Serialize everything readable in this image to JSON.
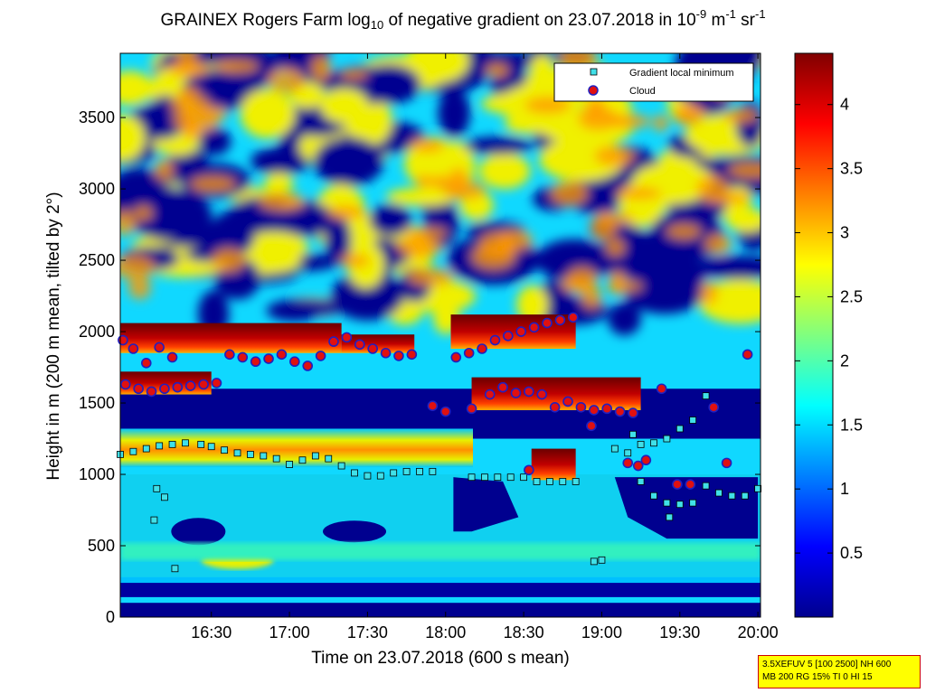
{
  "chart_data": {
    "type": "heatmap",
    "title": {
      "prefix": "GRAINEX Rogers Farm log",
      "sub": "10",
      "middle": " of negative gradient on 23.07.2018 in 10",
      "sup1": "-9",
      "mid2": " m",
      "sup2": "-1",
      "mid3": " sr",
      "sup3": "-1"
    },
    "xlabel": "Time on 23.07.2018 (600 s mean)",
    "ylabel": "Height in m (200 m mean, tilted by 2°)",
    "x_ticks": [
      "16:30",
      "17:00",
      "17:30",
      "18:00",
      "18:30",
      "19:00",
      "19:30",
      "20:00"
    ],
    "x_tick_minutes": [
      990,
      1020,
      1050,
      1080,
      1110,
      1140,
      1170,
      1200
    ],
    "xlim_minutes": [
      955,
      1201
    ],
    "y_ticks": [
      0,
      500,
      1000,
      1500,
      2000,
      2500,
      3000,
      3500
    ],
    "ylim": [
      0,
      3950
    ],
    "colorbar": {
      "ticks": [
        0.5,
        1,
        1.5,
        2,
        2.5,
        3,
        3.5,
        4
      ],
      "range": [
        0,
        4.4
      ],
      "colormap": "jet"
    },
    "legend": {
      "position": "top-right",
      "entries": [
        {
          "label": "Gradient local minimum",
          "marker": "square",
          "color": "#40e0e8"
        },
        {
          "label": "Cloud",
          "marker": "circle",
          "color": "#e01010",
          "edge": "#2020c0"
        }
      ]
    },
    "gradient_local_minimum": [
      {
        "t": 955,
        "h": 1140
      },
      {
        "t": 960,
        "h": 1160
      },
      {
        "t": 965,
        "h": 1180
      },
      {
        "t": 970,
        "h": 1200
      },
      {
        "t": 975,
        "h": 1210
      },
      {
        "t": 980,
        "h": 1220
      },
      {
        "t": 986,
        "h": 1210
      },
      {
        "t": 990,
        "h": 1195
      },
      {
        "t": 995,
        "h": 1170
      },
      {
        "t": 1000,
        "h": 1150
      },
      {
        "t": 1005,
        "h": 1140
      },
      {
        "t": 1010,
        "h": 1130
      },
      {
        "t": 1015,
        "h": 1110
      },
      {
        "t": 1020,
        "h": 1070
      },
      {
        "t": 1025,
        "h": 1100
      },
      {
        "t": 1030,
        "h": 1130
      },
      {
        "t": 1035,
        "h": 1110
      },
      {
        "t": 1040,
        "h": 1060
      },
      {
        "t": 1045,
        "h": 1010
      },
      {
        "t": 1050,
        "h": 990
      },
      {
        "t": 1055,
        "h": 990
      },
      {
        "t": 1060,
        "h": 1010
      },
      {
        "t": 1065,
        "h": 1020
      },
      {
        "t": 1070,
        "h": 1020
      },
      {
        "t": 1075,
        "h": 1020
      },
      {
        "t": 1090,
        "h": 980
      },
      {
        "t": 1095,
        "h": 980
      },
      {
        "t": 1100,
        "h": 980
      },
      {
        "t": 1105,
        "h": 980
      },
      {
        "t": 1110,
        "h": 980
      },
      {
        "t": 1115,
        "h": 950
      },
      {
        "t": 1120,
        "h": 950
      },
      {
        "t": 1125,
        "h": 950
      },
      {
        "t": 1130,
        "h": 950
      },
      {
        "t": 1150,
        "h": 1150
      },
      {
        "t": 1155,
        "h": 1210
      },
      {
        "t": 1160,
        "h": 1220
      },
      {
        "t": 1165,
        "h": 1250
      },
      {
        "t": 1170,
        "h": 1320
      },
      {
        "t": 1175,
        "h": 1380
      },
      {
        "t": 1180,
        "h": 1550
      },
      {
        "t": 1155,
        "h": 950
      },
      {
        "t": 1160,
        "h": 850
      },
      {
        "t": 1165,
        "h": 800
      },
      {
        "t": 1170,
        "h": 790
      },
      {
        "t": 1175,
        "h": 800
      },
      {
        "t": 1180,
        "h": 920
      },
      {
        "t": 1185,
        "h": 870
      },
      {
        "t": 1190,
        "h": 850
      },
      {
        "t": 1195,
        "h": 850
      },
      {
        "t": 1200,
        "h": 900
      },
      {
        "t": 1166,
        "h": 700
      },
      {
        "t": 969,
        "h": 900
      },
      {
        "t": 972,
        "h": 840
      },
      {
        "t": 968,
        "h": 680
      },
      {
        "t": 976,
        "h": 340
      },
      {
        "t": 1137,
        "h": 390
      },
      {
        "t": 1140,
        "h": 400
      },
      {
        "t": 1152,
        "h": 1280
      },
      {
        "t": 1145,
        "h": 1180
      }
    ],
    "cloud": [
      {
        "t": 956,
        "h": 1940
      },
      {
        "t": 960,
        "h": 1880
      },
      {
        "t": 965,
        "h": 1780
      },
      {
        "t": 970,
        "h": 1890
      },
      {
        "t": 975,
        "h": 1820
      },
      {
        "t": 957,
        "h": 1630
      },
      {
        "t": 962,
        "h": 1600
      },
      {
        "t": 967,
        "h": 1580
      },
      {
        "t": 972,
        "h": 1600
      },
      {
        "t": 977,
        "h": 1610
      },
      {
        "t": 982,
        "h": 1620
      },
      {
        "t": 987,
        "h": 1630
      },
      {
        "t": 992,
        "h": 1640
      },
      {
        "t": 997,
        "h": 1840
      },
      {
        "t": 1002,
        "h": 1820
      },
      {
        "t": 1007,
        "h": 1790
      },
      {
        "t": 1012,
        "h": 1810
      },
      {
        "t": 1017,
        "h": 1840
      },
      {
        "t": 1022,
        "h": 1790
      },
      {
        "t": 1027,
        "h": 1760
      },
      {
        "t": 1032,
        "h": 1830
      },
      {
        "t": 1037,
        "h": 1930
      },
      {
        "t": 1042,
        "h": 1960
      },
      {
        "t": 1047,
        "h": 1910
      },
      {
        "t": 1052,
        "h": 1880
      },
      {
        "t": 1057,
        "h": 1850
      },
      {
        "t": 1062,
        "h": 1830
      },
      {
        "t": 1067,
        "h": 1840
      },
      {
        "t": 1075,
        "h": 1480
      },
      {
        "t": 1080,
        "h": 1440
      },
      {
        "t": 1084,
        "h": 1820
      },
      {
        "t": 1089,
        "h": 1850
      },
      {
        "t": 1094,
        "h": 1880
      },
      {
        "t": 1099,
        "h": 1940
      },
      {
        "t": 1104,
        "h": 1970
      },
      {
        "t": 1109,
        "h": 2000
      },
      {
        "t": 1114,
        "h": 2030
      },
      {
        "t": 1119,
        "h": 2060
      },
      {
        "t": 1124,
        "h": 2080
      },
      {
        "t": 1129,
        "h": 2100
      },
      {
        "t": 1090,
        "h": 1460
      },
      {
        "t": 1097,
        "h": 1560
      },
      {
        "t": 1102,
        "h": 1610
      },
      {
        "t": 1107,
        "h": 1570
      },
      {
        "t": 1112,
        "h": 1580
      },
      {
        "t": 1117,
        "h": 1560
      },
      {
        "t": 1122,
        "h": 1470
      },
      {
        "t": 1127,
        "h": 1510
      },
      {
        "t": 1132,
        "h": 1470
      },
      {
        "t": 1137,
        "h": 1450
      },
      {
        "t": 1142,
        "h": 1460
      },
      {
        "t": 1147,
        "h": 1440
      },
      {
        "t": 1152,
        "h": 1430
      },
      {
        "t": 1136,
        "h": 1340
      },
      {
        "t": 1150,
        "h": 1080
      },
      {
        "t": 1154,
        "h": 1060
      },
      {
        "t": 1157,
        "h": 1100
      },
      {
        "t": 1163,
        "h": 1600
      },
      {
        "t": 1169,
        "h": 930
      },
      {
        "t": 1174,
        "h": 930
      },
      {
        "t": 1183,
        "h": 1470
      },
      {
        "t": 1188,
        "h": 1080
      },
      {
        "t": 1196,
        "h": 1840
      },
      {
        "t": 1112,
        "h": 1030
      }
    ]
  },
  "info_box": {
    "line1": "3.5XEFUV 5 [100 2500] NH 600",
    "line2": "MB 200 RG 15% TI 0 HI 15"
  }
}
